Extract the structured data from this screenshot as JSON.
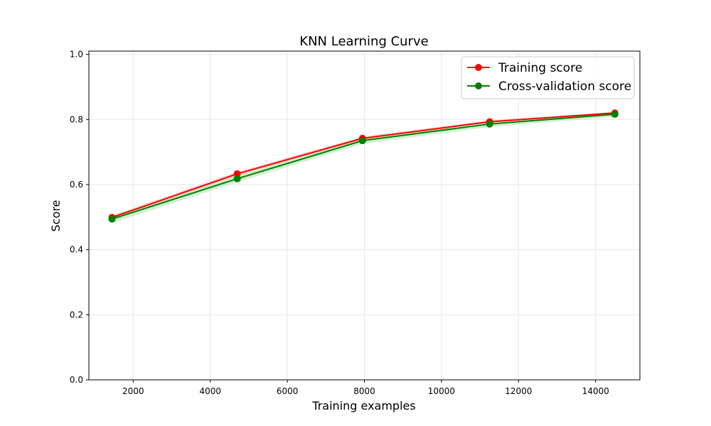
{
  "chart_data": {
    "type": "line",
    "title": "KNN Learning Curve",
    "xlabel": "Training examples",
    "ylabel": "Score",
    "xlim": [
      850,
      15150
    ],
    "ylim": [
      0.0,
      1.01
    ],
    "xticks": [
      2000,
      4000,
      6000,
      8000,
      10000,
      12000,
      14000
    ],
    "xtick_labels": [
      "2000",
      "4000",
      "6000",
      "8000",
      "10000",
      "12000",
      "14000"
    ],
    "yticks": [
      0.0,
      0.2,
      0.4,
      0.6,
      0.8,
      1.0
    ],
    "ytick_labels": [
      "0.0",
      "0.2",
      "0.4",
      "0.6",
      "0.8",
      "1.0"
    ],
    "grid": true,
    "legend_position": "top-right",
    "x": [
      1450,
      4700,
      7950,
      11250,
      14500
    ],
    "series": [
      {
        "name": "Training score",
        "color": "#ff0000",
        "band_color": "#ffb3b3",
        "values": [
          0.499,
          0.633,
          0.742,
          0.793,
          0.82
        ],
        "band": [
          0.006,
          0.006,
          0.005,
          0.004,
          0.003
        ]
      },
      {
        "name": "Cross-validation score",
        "color": "#008000",
        "band_color": "#b3e6b3",
        "values": [
          0.494,
          0.618,
          0.735,
          0.786,
          0.816
        ],
        "band": [
          0.012,
          0.011,
          0.01,
          0.009,
          0.008
        ]
      }
    ]
  }
}
